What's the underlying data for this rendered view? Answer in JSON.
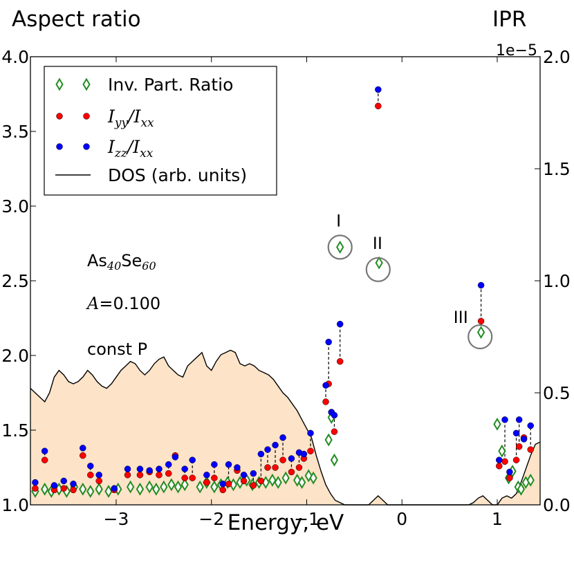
{
  "chart_data": {
    "type": "scatter",
    "xlabel": "Energy, eV",
    "ylabel_left": "Aspect ratio",
    "ylabel_right": "IPR",
    "right_axis_offset": "1e−5",
    "xlim": [
      -3.9,
      1.45
    ],
    "ylim_left": [
      1.0,
      4.0
    ],
    "ylim_right": [
      0.0,
      2.0
    ],
    "x_ticks": [
      {
        "value": -3,
        "label": "−3"
      },
      {
        "value": -2,
        "label": "−2"
      },
      {
        "value": -1,
        "label": "−1"
      },
      {
        "value": 0,
        "label": "0"
      },
      {
        "value": 1,
        "label": "1"
      }
    ],
    "y_ticks_left": [
      {
        "value": 1.0,
        "label": "1.0"
      },
      {
        "value": 1.5,
        "label": "1.5"
      },
      {
        "value": 2.0,
        "label": "2.0"
      },
      {
        "value": 2.5,
        "label": "2.5"
      },
      {
        "value": 3.0,
        "label": "3.0"
      },
      {
        "value": 3.5,
        "label": "3.5"
      },
      {
        "value": 4.0,
        "label": "4.0"
      }
    ],
    "y_ticks_right": [
      {
        "value": 0.0,
        "label": "0.0"
      },
      {
        "value": 0.5,
        "label": "0.5"
      },
      {
        "value": 1.0,
        "label": "1.0"
      },
      {
        "value": 1.5,
        "label": "1.5"
      },
      {
        "value": 2.0,
        "label": "2.0"
      }
    ],
    "legend": {
      "placement": "upper-left",
      "entries": [
        {
          "marker": "diamond",
          "color": "#228B22",
          "parts": [
            {
              "t": "Inv. Part. Ratio",
              "math": false
            }
          ]
        },
        {
          "marker": "circle",
          "color": "#ff0000",
          "parts": [
            {
              "t": "I",
              "math": true
            },
            {
              "t": "yy",
              "math": true,
              "sub": true
            },
            {
              "t": "/",
              "math": true
            },
            {
              "t": "I",
              "math": true
            },
            {
              "t": "xx",
              "math": true,
              "sub": true
            }
          ]
        },
        {
          "marker": "circle",
          "color": "#0000ff",
          "parts": [
            {
              "t": "I",
              "math": true
            },
            {
              "t": "zz",
              "math": true,
              "sub": true
            },
            {
              "t": "/",
              "math": true
            },
            {
              "t": "I",
              "math": true
            },
            {
              "t": "xx",
              "math": true,
              "sub": true
            }
          ]
        },
        {
          "marker": "line",
          "color": "#000000",
          "parts": [
            {
              "t": "DOS (arb. units)",
              "math": false
            }
          ]
        }
      ]
    },
    "annotations": {
      "composition": [
        {
          "t": "As",
          "sub": false
        },
        {
          "t": "40",
          "sub": true
        },
        {
          "t": "Se",
          "sub": false
        },
        {
          "t": "60",
          "sub": true
        }
      ],
      "amplitude": {
        "symbol": "A",
        "text": "=0.100"
      },
      "ensemble": "const P",
      "labels": [
        {
          "text": "I",
          "x": -0.65,
          "ipr": 1.15
        },
        {
          "text": "II",
          "x": -0.25,
          "ipr": 1.05
        },
        {
          "text": "III",
          "x": 0.82,
          "ipr": 0.75
        }
      ]
    },
    "dos": {
      "color": "#000000",
      "fill": "#fde3c8",
      "x": [
        -3.9,
        -3.85,
        -3.8,
        -3.75,
        -3.7,
        -3.65,
        -3.6,
        -3.55,
        -3.5,
        -3.45,
        -3.4,
        -3.35,
        -3.3,
        -3.25,
        -3.2,
        -3.15,
        -3.1,
        -3.05,
        -3.0,
        -2.95,
        -2.9,
        -2.85,
        -2.8,
        -2.75,
        -2.7,
        -2.65,
        -2.6,
        -2.55,
        -2.5,
        -2.45,
        -2.4,
        -2.35,
        -2.3,
        -2.25,
        -2.2,
        -2.15,
        -2.1,
        -2.05,
        -2.0,
        -1.95,
        -1.9,
        -1.85,
        -1.8,
        -1.75,
        -1.7,
        -1.65,
        -1.6,
        -1.55,
        -1.5,
        -1.45,
        -1.4,
        -1.35,
        -1.3,
        -1.25,
        -1.2,
        -1.15,
        -1.1,
        -1.05,
        -1.0,
        -0.95,
        -0.9,
        -0.85,
        -0.8,
        -0.75,
        -0.7,
        -0.65,
        -0.6,
        -0.55,
        -0.5,
        -0.45,
        -0.4,
        -0.35,
        -0.3,
        -0.25,
        -0.2,
        -0.15,
        -0.1,
        -0.05,
        0.0,
        0.1,
        0.2,
        0.3,
        0.4,
        0.5,
        0.6,
        0.7,
        0.75,
        0.8,
        0.85,
        0.9,
        0.95,
        1.0,
        1.05,
        1.1,
        1.15,
        1.2,
        1.25,
        1.3,
        1.35,
        1.4,
        1.45
      ],
      "ipr_scale": [
        0.52,
        0.5,
        0.48,
        0.46,
        0.5,
        0.57,
        0.6,
        0.58,
        0.55,
        0.54,
        0.55,
        0.57,
        0.6,
        0.58,
        0.55,
        0.53,
        0.52,
        0.54,
        0.57,
        0.6,
        0.62,
        0.64,
        0.63,
        0.6,
        0.58,
        0.6,
        0.63,
        0.65,
        0.66,
        0.62,
        0.6,
        0.58,
        0.57,
        0.62,
        0.64,
        0.66,
        0.68,
        0.62,
        0.6,
        0.64,
        0.67,
        0.68,
        0.69,
        0.68,
        0.63,
        0.62,
        0.63,
        0.62,
        0.6,
        0.59,
        0.58,
        0.56,
        0.53,
        0.5,
        0.48,
        0.45,
        0.42,
        0.38,
        0.34,
        0.3,
        0.22,
        0.15,
        0.09,
        0.05,
        0.02,
        0.01,
        0.0,
        0.0,
        0.0,
        0.0,
        0.0,
        0.0,
        0.02,
        0.04,
        0.02,
        0.0,
        0.0,
        0.0,
        0.0,
        0.0,
        0.0,
        0.0,
        0.0,
        0.0,
        0.0,
        0.0,
        0.01,
        0.03,
        0.04,
        0.02,
        0.0,
        0.0,
        0.03,
        0.04,
        0.03,
        0.05,
        0.1,
        0.16,
        0.22,
        0.27,
        0.28
      ]
    },
    "series": [
      {
        "name": "Inv. Part. Ratio",
        "axis": "right",
        "marker": "diamond",
        "color": "#228B22",
        "x": [
          -3.85,
          -3.75,
          -3.68,
          -3.6,
          -3.52,
          -3.44,
          -3.35,
          -3.27,
          -3.18,
          -3.08,
          -2.98,
          -2.85,
          -2.75,
          -2.65,
          -2.58,
          -2.5,
          -2.42,
          -2.35,
          -2.28,
          -2.12,
          -2.05,
          -1.97,
          -1.9,
          -1.83,
          -1.77,
          -1.7,
          -1.63,
          -1.57,
          -1.5,
          -1.43,
          -1.36,
          -1.3,
          -1.22,
          -1.1,
          -1.05,
          -0.98,
          -0.93,
          -0.77,
          -0.74,
          -0.71,
          -0.65,
          -0.24,
          0.83,
          1.0,
          1.05,
          1.12,
          1.16,
          1.22,
          1.25,
          1.3,
          1.35
        ],
        "ipr": [
          0.06,
          0.07,
          0.06,
          0.07,
          0.06,
          0.08,
          0.07,
          0.06,
          0.07,
          0.06,
          0.07,
          0.08,
          0.07,
          0.08,
          0.07,
          0.08,
          0.09,
          0.08,
          0.09,
          0.08,
          0.1,
          0.08,
          0.09,
          0.1,
          0.09,
          0.1,
          0.11,
          0.09,
          0.1,
          0.1,
          0.11,
          0.1,
          0.12,
          0.11,
          0.1,
          0.13,
          0.12,
          0.29,
          0.39,
          0.2,
          1.15,
          1.08,
          0.77,
          0.36,
          0.24,
          0.12,
          0.15,
          0.08,
          0.07,
          0.1,
          0.11
        ]
      },
      {
        "name": "Iyy/Ixx",
        "axis": "left",
        "marker": "circle",
        "color": "#ff0000",
        "x": [
          -3.85,
          -3.75,
          -3.65,
          -3.55,
          -3.45,
          -3.35,
          -3.27,
          -3.18,
          -3.02,
          -2.88,
          -2.75,
          -2.65,
          -2.55,
          -2.45,
          -2.38,
          -2.28,
          -2.2,
          -2.05,
          -1.97,
          -1.88,
          -1.82,
          -1.73,
          -1.66,
          -1.56,
          -1.48,
          -1.41,
          -1.33,
          -1.25,
          -1.16,
          -1.08,
          -1.03,
          -0.96,
          -0.8,
          -0.77,
          -0.74,
          -0.71,
          -0.65,
          -0.25,
          0.83,
          1.02,
          1.08,
          1.13,
          1.2,
          1.23,
          1.28,
          1.35
        ],
        "y": [
          1.11,
          1.3,
          1.1,
          1.11,
          1.1,
          1.33,
          1.2,
          1.16,
          1.1,
          1.2,
          1.2,
          1.22,
          1.2,
          1.21,
          1.33,
          1.18,
          1.18,
          1.15,
          1.18,
          1.1,
          1.14,
          1.23,
          1.16,
          1.13,
          1.16,
          1.25,
          1.25,
          1.3,
          1.22,
          1.25,
          1.31,
          1.36,
          1.69,
          1.81,
          1.62,
          1.49,
          1.96,
          3.67,
          2.23,
          1.26,
          1.29,
          1.18,
          1.3,
          1.39,
          1.45,
          1.37
        ]
      },
      {
        "name": "Izz/Ixx",
        "axis": "left",
        "marker": "circle",
        "color": "#0000ff",
        "x": [
          -3.85,
          -3.75,
          -3.65,
          -3.55,
          -3.45,
          -3.35,
          -3.27,
          -3.18,
          -3.02,
          -2.88,
          -2.75,
          -2.65,
          -2.55,
          -2.45,
          -2.38,
          -2.28,
          -2.2,
          -2.05,
          -1.97,
          -1.88,
          -1.82,
          -1.73,
          -1.66,
          -1.56,
          -1.48,
          -1.41,
          -1.33,
          -1.25,
          -1.16,
          -1.08,
          -1.03,
          -0.96,
          -0.8,
          -0.77,
          -0.74,
          -0.71,
          -0.65,
          -0.25,
          0.83,
          1.02,
          1.08,
          1.13,
          1.2,
          1.23,
          1.28,
          1.35
        ],
        "y": [
          1.15,
          1.36,
          1.13,
          1.16,
          1.14,
          1.38,
          1.26,
          1.2,
          1.11,
          1.24,
          1.24,
          1.23,
          1.24,
          1.27,
          1.32,
          1.24,
          1.3,
          1.2,
          1.27,
          1.14,
          1.27,
          1.25,
          1.2,
          1.21,
          1.34,
          1.37,
          1.4,
          1.45,
          1.31,
          1.35,
          1.34,
          1.48,
          1.8,
          2.09,
          1.62,
          1.6,
          2.21,
          3.78,
          2.47,
          1.3,
          1.57,
          1.22,
          1.48,
          1.57,
          1.44,
          1.53
        ]
      }
    ]
  }
}
